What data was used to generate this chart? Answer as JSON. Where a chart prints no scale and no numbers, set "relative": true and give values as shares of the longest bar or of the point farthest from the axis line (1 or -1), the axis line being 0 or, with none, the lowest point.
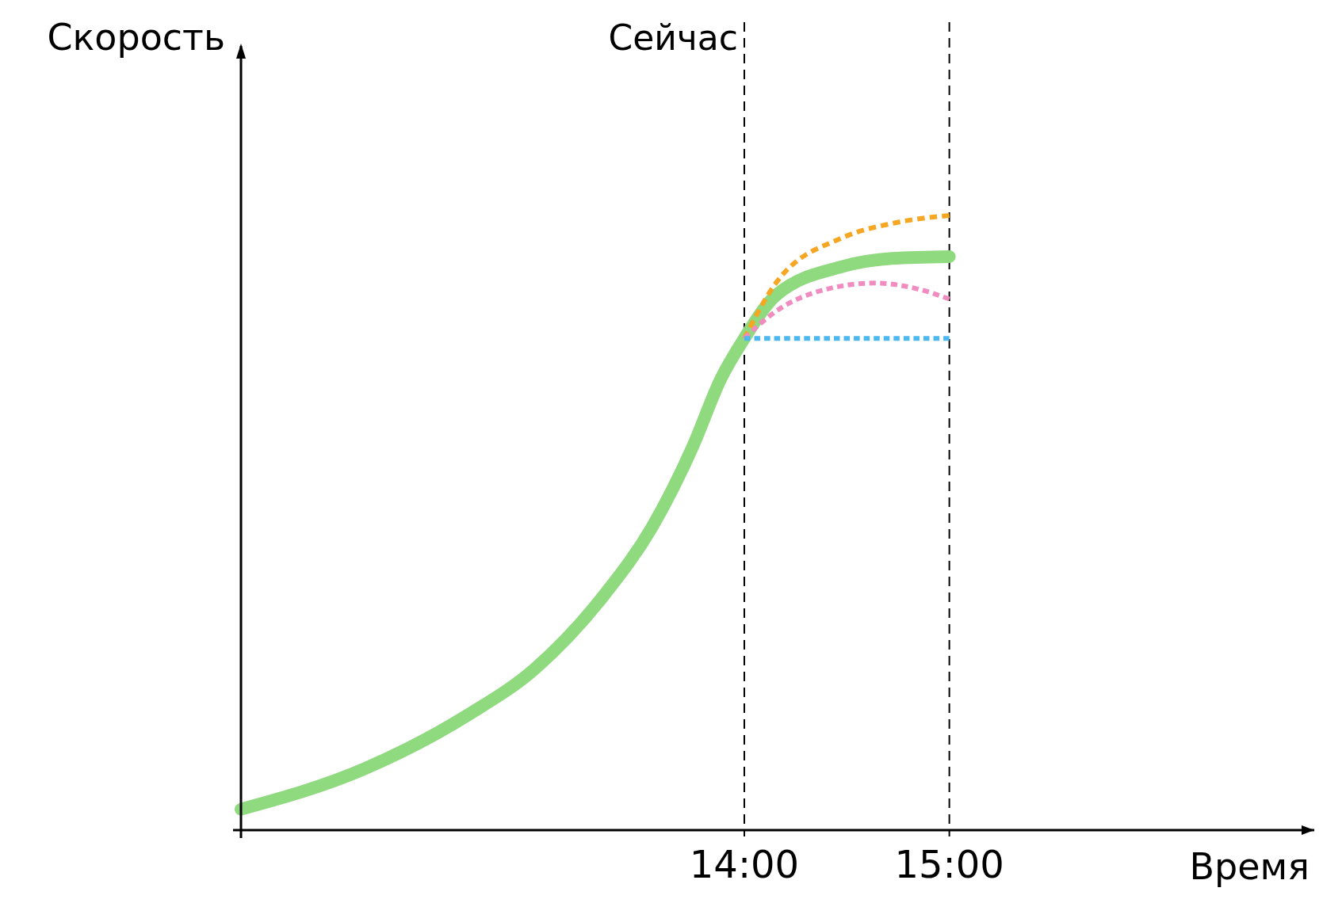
{
  "chart_data": {
    "type": "line",
    "relative": true,
    "xlabel": "Время",
    "ylabel": "Скорость",
    "xlim": [
      11.545,
      16.78
    ],
    "xticks": [
      {
        "value": 14,
        "label": "14:00"
      },
      {
        "value": 15,
        "label": "15:00"
      }
    ],
    "tick_labels": "x",
    "grid": false,
    "marker": "none",
    "series": [
      {
        "color": "#f5a623",
        "line_style": "dashed",
        "x": [
          14,
          14.154,
          14.48,
          14.72,
          15
        ],
        "values": [
          0.8,
          0.89,
          0.964,
          0.987,
          1
        ]
      },
      {
        "color": "#8fd97f",
        "line_style": "solid",
        "x": [
          11.545,
          12.149,
          12.65,
          12.98,
          13.32,
          13.55,
          13.75,
          13.885,
          14,
          14.154,
          14.48,
          14.72,
          15
        ],
        "values": [
          0.034,
          0.1,
          0.187,
          0.263,
          0.384,
          0.493,
          0.625,
          0.734,
          0.8,
          0.87,
          0.917,
          0.93,
          0.933
        ]
      },
      {
        "color": "#f08cc0",
        "line_style": "dashed",
        "x": [
          14,
          14.154,
          14.4,
          14.64,
          14.85,
          15
        ],
        "values": [
          0.8,
          0.844,
          0.88,
          0.89,
          0.88,
          0.864
        ]
      },
      {
        "color": "#4db8f0",
        "line_style": "dashed",
        "x": [
          14,
          15
        ],
        "values": [
          0.8,
          0.8
        ]
      }
    ],
    "ref_lines": [
      {
        "axis": "x",
        "value": 14,
        "label": "Сейчас",
        "color": "#000000",
        "line_style": "dashed"
      },
      {
        "axis": "x",
        "value": 15,
        "color": "#000000",
        "line_style": "dashed"
      }
    ]
  }
}
